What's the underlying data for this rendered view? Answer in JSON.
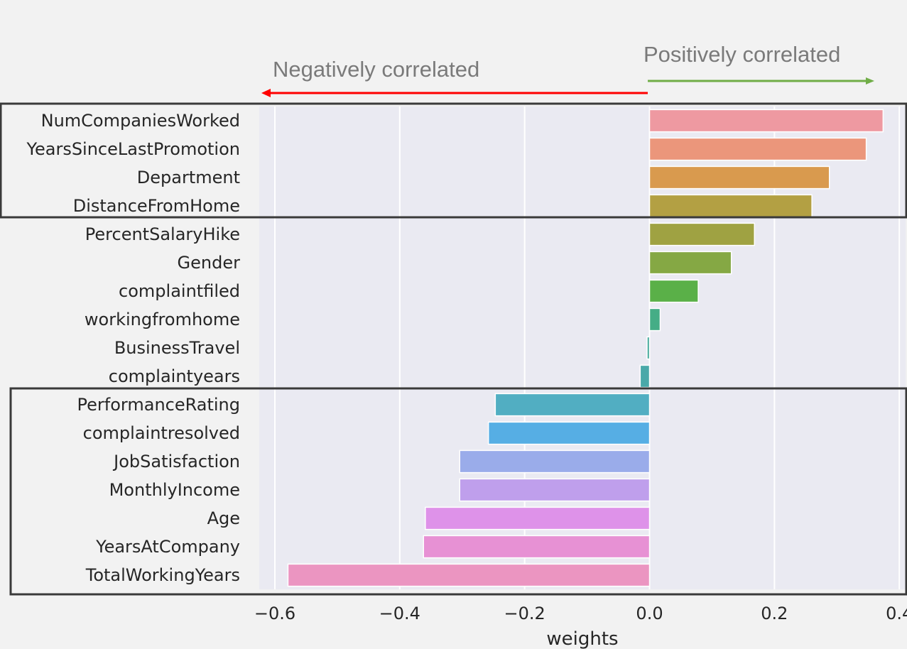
{
  "chart_data": {
    "type": "bar",
    "orientation": "horizontal",
    "title": "",
    "xlabel": "weights",
    "ylabel": "",
    "xlim": [
      -0.625,
      0.41
    ],
    "xticks": [
      -0.6,
      -0.4,
      -0.2,
      0.0,
      0.2,
      0.4
    ],
    "xtick_labels": [
      "−0.6",
      "−0.4",
      "−0.2",
      "0.0",
      "0.2",
      "0.4"
    ],
    "grid": true,
    "categories": [
      "NumCompaniesWorked",
      "YearsSinceLastPromotion",
      "Department",
      "DistanceFromHome",
      "PercentSalaryHike",
      "Gender",
      "complaintfiled",
      "workingfromhome",
      "BusinessTravel",
      "complaintyears",
      "PerformanceRating",
      "complaintresolved",
      "JobSatisfaction",
      "MonthlyIncome",
      "Age",
      "YearsAtCompany",
      "TotalWorkingYears"
    ],
    "values": [
      0.374,
      0.347,
      0.288,
      0.26,
      0.168,
      0.131,
      0.078,
      0.017,
      -0.004,
      -0.015,
      -0.247,
      -0.258,
      -0.304,
      -0.304,
      -0.359,
      -0.362,
      -0.579
    ],
    "colors": [
      "#ee99a1",
      "#eb967b",
      "#d99a4e",
      "#b3a043",
      "#9fa242",
      "#85a844",
      "#5ab048",
      "#45ad86",
      "#46aa9c",
      "#4aa9a9",
      "#51aec2",
      "#56aee4",
      "#9aacea",
      "#bf9fec",
      "#de92e9",
      "#e791d4",
      "#eb95c1"
    ],
    "annotations": {
      "negative": "Negatively correlated",
      "positive": "Positively correlated"
    },
    "annotation_colors": {
      "negative": "#ff0000",
      "positive": "#70ad47"
    },
    "highlight_groups": [
      {
        "from": "NumCompaniesWorked",
        "to": "DistanceFromHome"
      },
      {
        "from": "PerformanceRating",
        "to": "TotalWorkingYears"
      }
    ]
  }
}
